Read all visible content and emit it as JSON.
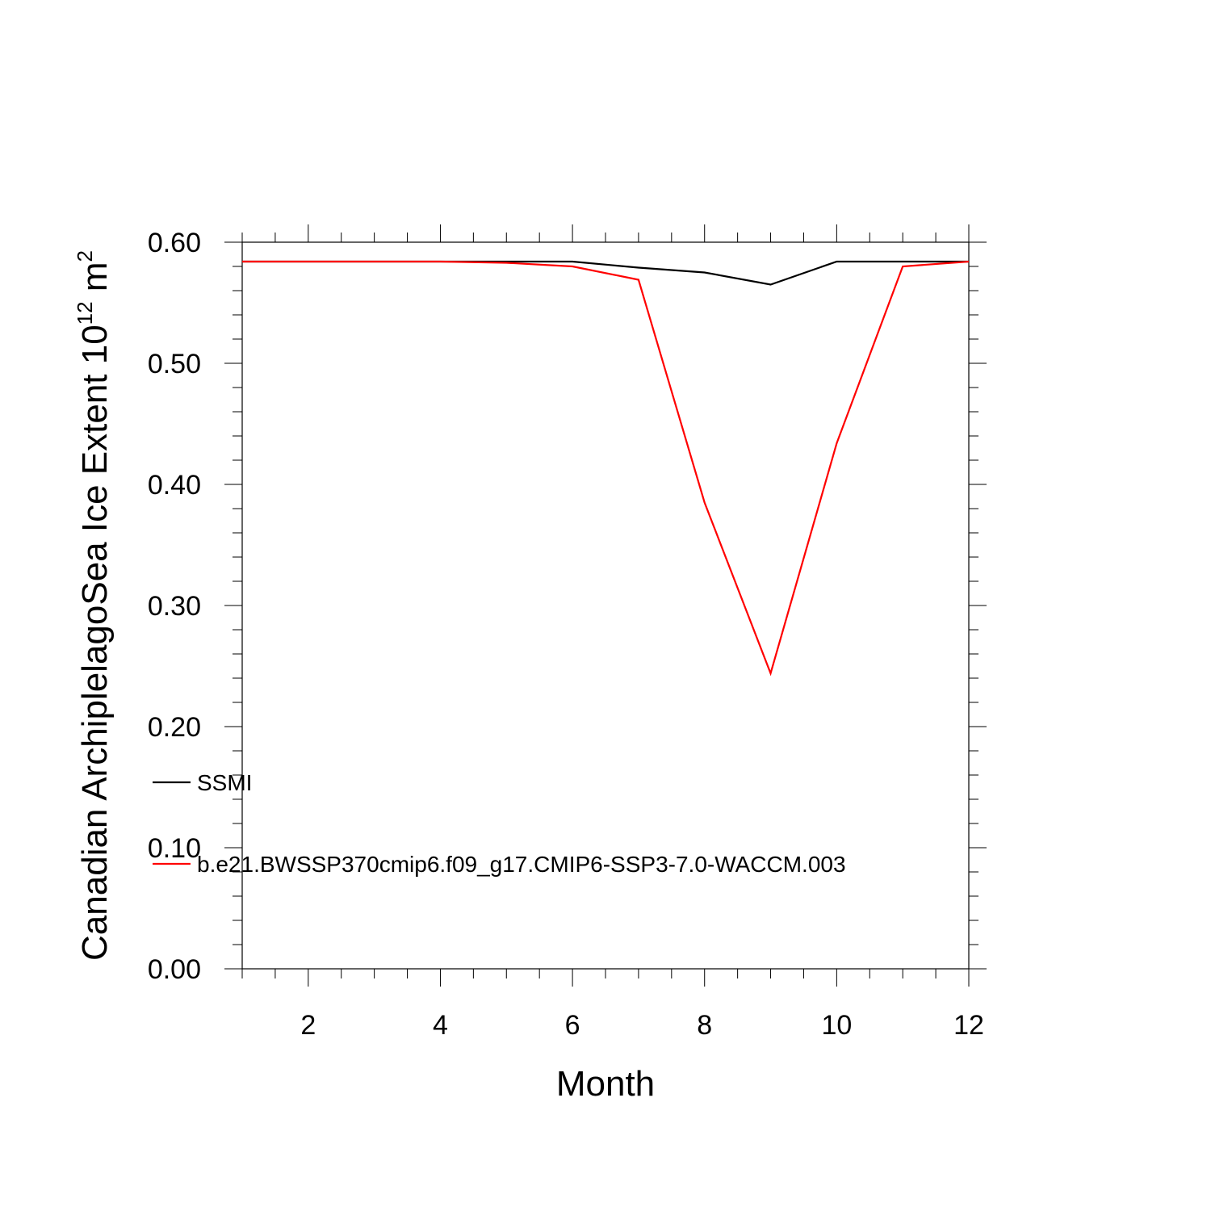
{
  "chart_data": {
    "type": "line",
    "xlabel": "Month",
    "ylabel": {
      "main": "Canadian ArchiplelagoSea Ice Extent 10",
      "sup1": "12",
      "mid": " m",
      "sup2": "2"
    },
    "xlim": [
      1,
      12
    ],
    "ylim": [
      0,
      0.6
    ],
    "x": [
      1,
      2,
      3,
      4,
      5,
      6,
      7,
      8,
      9,
      10,
      11,
      12
    ],
    "xticks": [
      2,
      4,
      6,
      8,
      10,
      12
    ],
    "xtick_labels": [
      "2",
      "4",
      "6",
      "8",
      "10",
      "12"
    ],
    "yticks": [
      0,
      0.1,
      0.2,
      0.3,
      0.4,
      0.5,
      0.6
    ],
    "ytick_labels": [
      "0.00",
      "0.10",
      "0.20",
      "0.30",
      "0.40",
      "0.50",
      "0.60"
    ],
    "grid": false,
    "legend_position": "lower-left",
    "series": [
      {
        "name": "SSMI",
        "color": "#000000",
        "values": [
          0.584,
          0.584,
          0.584,
          0.584,
          0.584,
          0.584,
          0.579,
          0.575,
          0.565,
          0.584,
          0.584,
          0.584
        ]
      },
      {
        "name": "b.e21.BWSSP370cmip6.f09_g17.CMIP6-SSP3-7.0-WACCM.003",
        "color": "#ff0000",
        "values": [
          0.584,
          0.584,
          0.584,
          0.584,
          0.583,
          0.58,
          0.569,
          0.385,
          0.244,
          0.434,
          0.58,
          0.584
        ]
      }
    ]
  }
}
